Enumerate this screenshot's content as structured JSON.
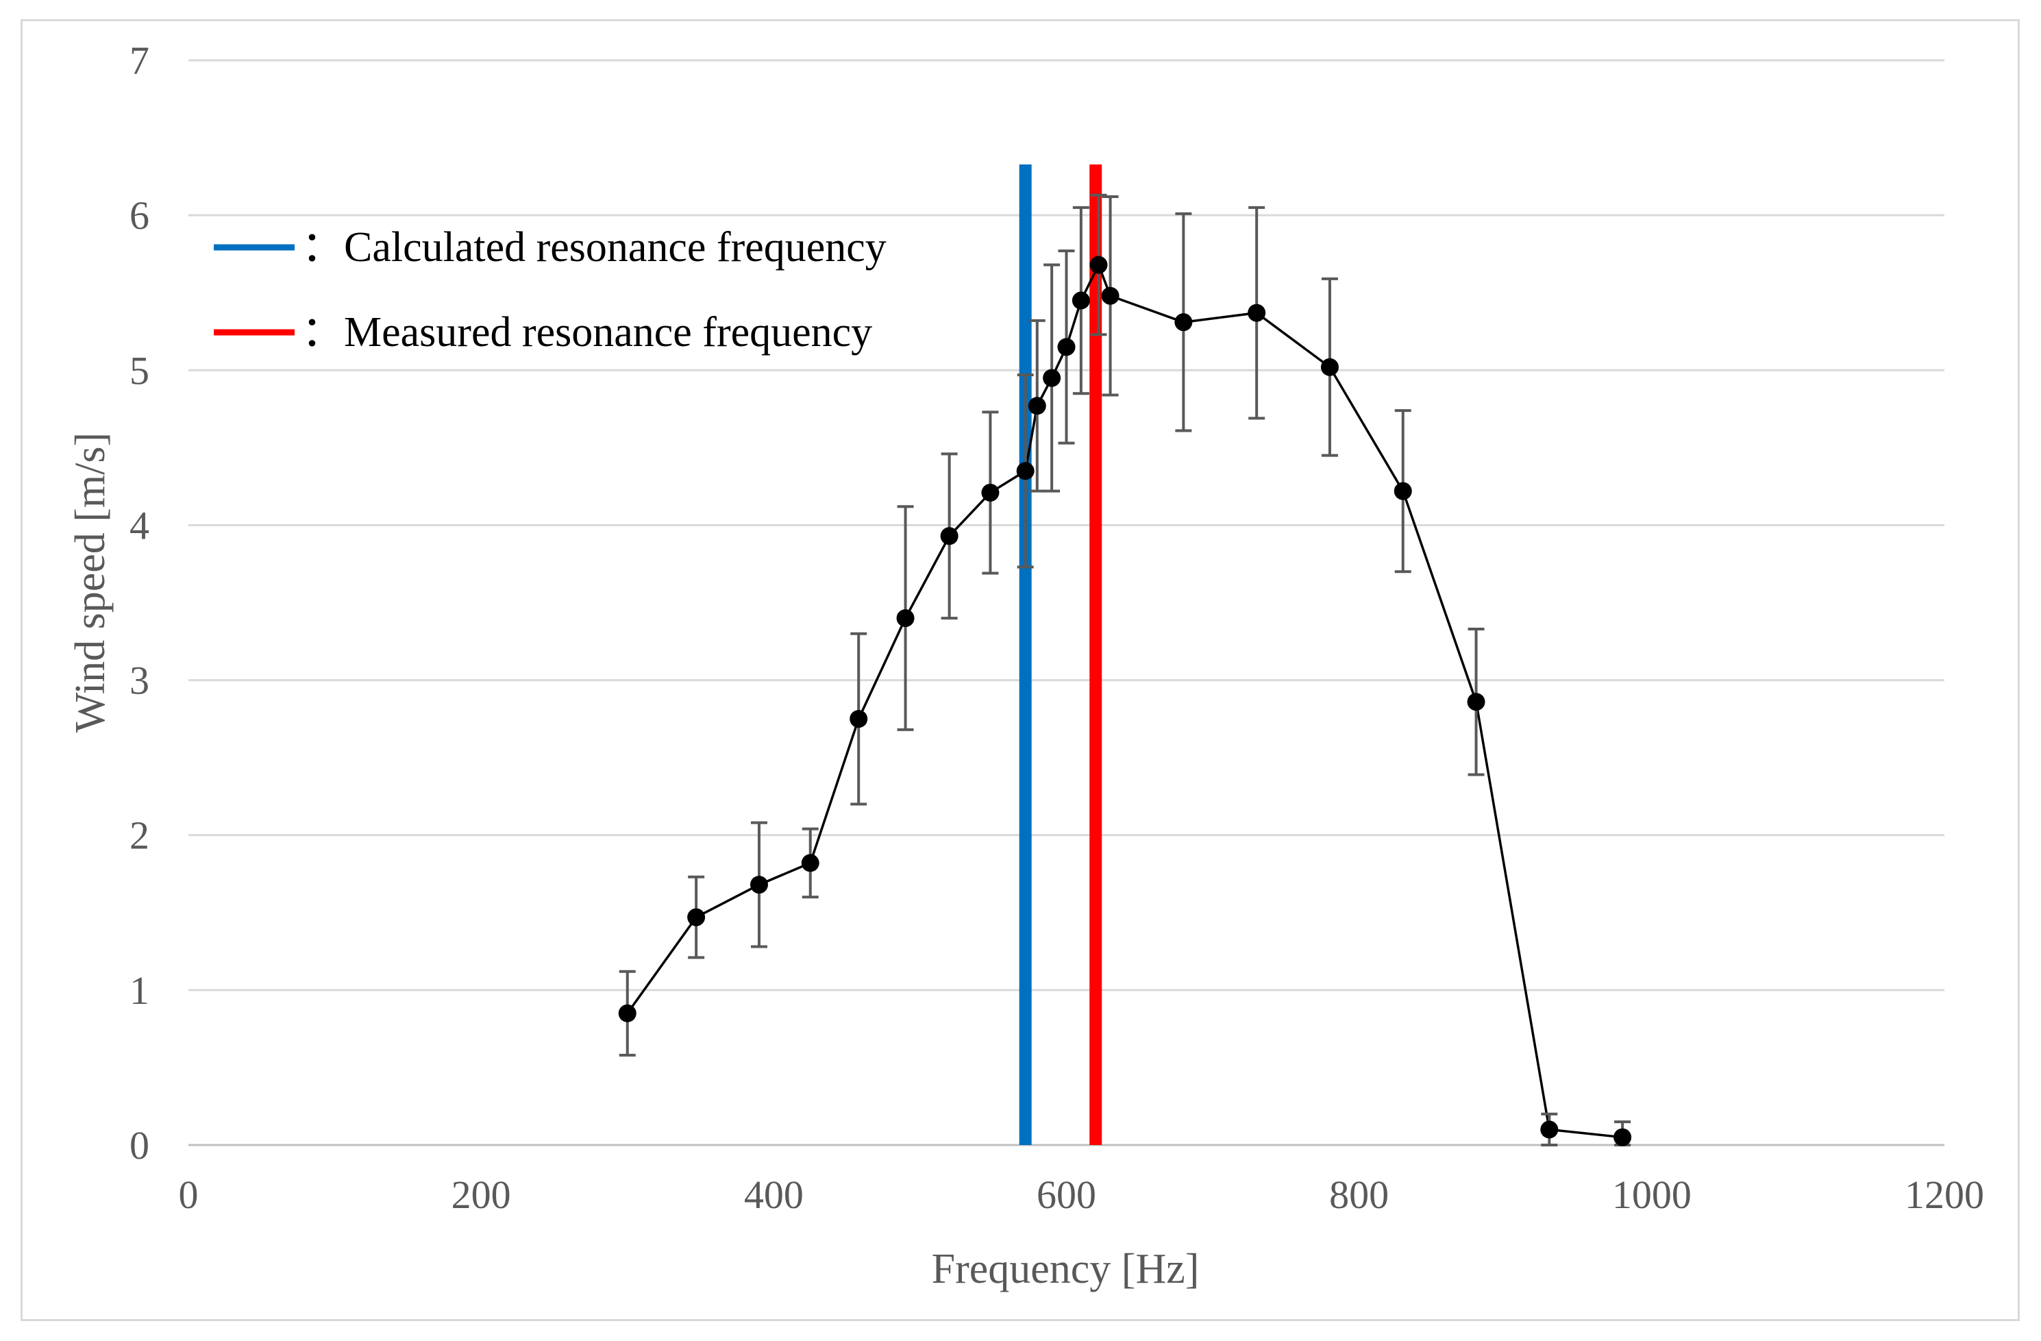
{
  "chart_data": {
    "type": "line",
    "title": "",
    "xlabel": "Frequency [Hz]",
    "ylabel": "Wind speed [m/s]",
    "xlim": [
      0,
      1200
    ],
    "ylim": [
      0,
      7
    ],
    "x_ticks": [
      0,
      200,
      400,
      600,
      800,
      1000,
      1200
    ],
    "y_ticks": [
      0,
      1,
      2,
      3,
      4,
      5,
      6,
      7
    ],
    "x_tick_labels": [
      "0",
      "200",
      "400",
      "600",
      "800",
      "1000",
      "1200"
    ],
    "y_tick_labels": [
      "0",
      "1",
      "2",
      "3",
      "4",
      "5",
      "6",
      "7"
    ],
    "grid": "horizontal",
    "series": [
      {
        "name": "Wind speed",
        "color": "#000000",
        "x": [
          300,
          347,
          390,
          425,
          458,
          490,
          520,
          548,
          572,
          580,
          590,
          600,
          610,
          622,
          630,
          680,
          730,
          780,
          830,
          880,
          930,
          980
        ],
        "y": [
          0.85,
          1.47,
          1.68,
          1.82,
          2.75,
          3.4,
          3.93,
          4.21,
          4.35,
          4.77,
          4.95,
          5.15,
          5.45,
          5.68,
          5.48,
          5.31,
          5.37,
          5.02,
          4.22,
          2.86,
          0.1,
          0.05
        ],
        "err": [
          0.27,
          0.26,
          0.4,
          0.22,
          0.55,
          0.72,
          0.53,
          0.52,
          0.62,
          0.55,
          0.73,
          0.62,
          0.6,
          0.45,
          0.64,
          0.7,
          0.68,
          0.57,
          0.52,
          0.47,
          0.1,
          0.1
        ]
      }
    ],
    "vertical_lines": [
      {
        "name": "Calculated resonance frequency",
        "x": 572,
        "color": "#0070c0"
      },
      {
        "name": "Measured resonance frequency",
        "x": 620,
        "color": "#ff0000"
      }
    ],
    "legend": {
      "position": "top-left",
      "entries": [
        {
          "label": "：Calculated resonance frequency",
          "color": "#0070c0"
        },
        {
          "label": "：Measured resonance frequency",
          "color": "#ff0000"
        }
      ]
    }
  }
}
